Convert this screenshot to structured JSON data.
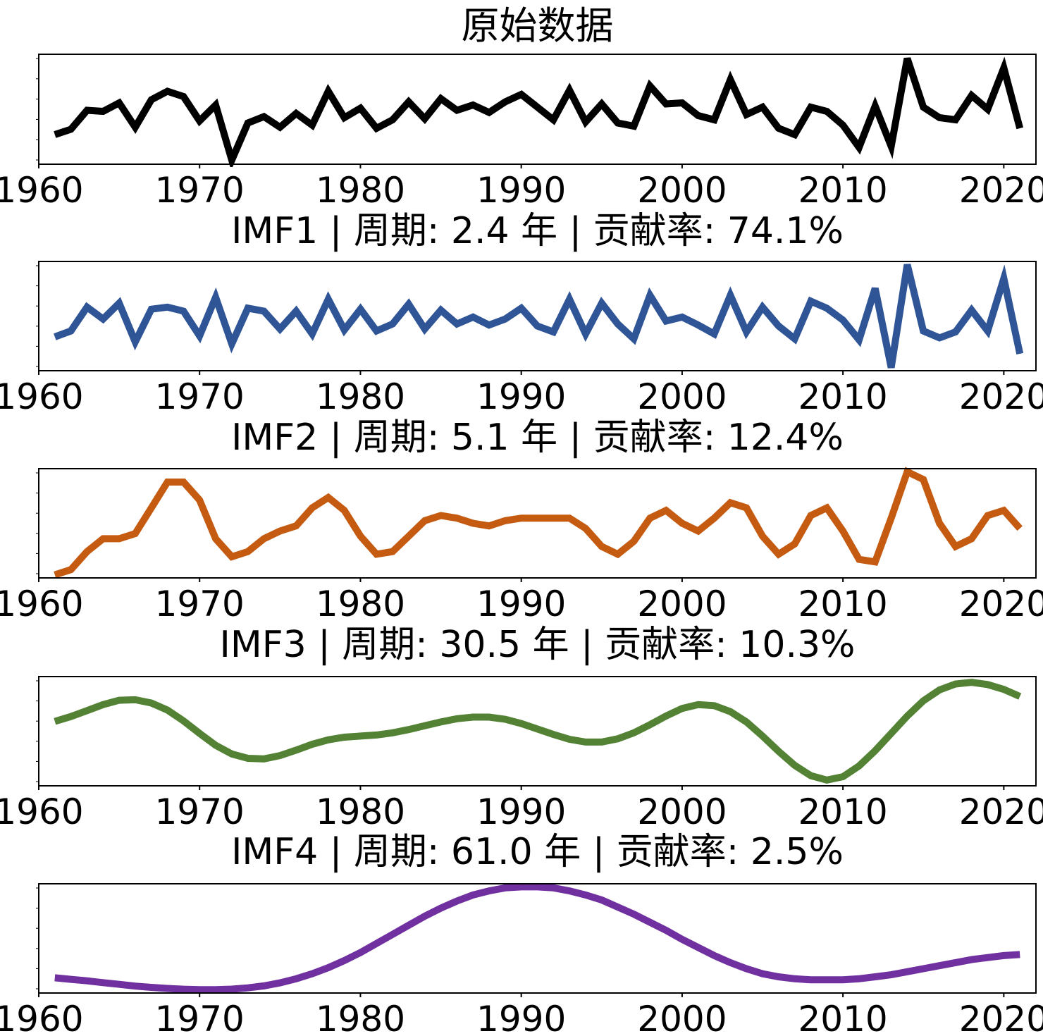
{
  "chart_data": [
    {
      "type": "line",
      "title": "原始数据",
      "color": "#000000",
      "xlim": [
        1960,
        2022
      ],
      "xticks": [
        "1960",
        "1970",
        "1980",
        "1990",
        "2000",
        "2010",
        "2020"
      ],
      "x": [
        1961,
        1962,
        1963,
        1964,
        1965,
        1966,
        1967,
        1968,
        1969,
        1970,
        1971,
        1972,
        1973,
        1974,
        1975,
        1976,
        1977,
        1978,
        1979,
        1980,
        1981,
        1982,
        1983,
        1984,
        1985,
        1986,
        1987,
        1988,
        1989,
        1990,
        1991,
        1992,
        1993,
        1994,
        1995,
        1996,
        1997,
        1998,
        1999,
        2000,
        2001,
        2002,
        2003,
        2004,
        2005,
        2006,
        2007,
        2008,
        2009,
        2010,
        2011,
        2012,
        2013,
        2014,
        2015,
        2016,
        2017,
        2018,
        2019,
        2020,
        2021
      ],
      "values": [
        1.2,
        1.7,
        3.5,
        3.4,
        4.2,
        1.9,
        4.5,
        5.3,
        4.8,
        2.5,
        4.0,
        -1.2,
        2.3,
        2.9,
        1.9,
        3.2,
        2.1,
        5.3,
        2.8,
        3.7,
        1.8,
        2.6,
        4.3,
        2.7,
        4.6,
        3.5,
        4.0,
        3.3,
        4.3,
        5.0,
        3.8,
        2.6,
        5.4,
        2.4,
        4.1,
        2.3,
        2.0,
        5.8,
        4.1,
        4.2,
        3.0,
        2.6,
        6.4,
        3.1,
        3.8,
        1.8,
        1.2,
        3.8,
        3.4,
        2.1,
        0.0,
        3.9,
        0.1,
        8.4,
        3.8,
        2.8,
        2.6,
        4.9,
        3.6,
        7.5,
        1.8
      ],
      "ylim": [
        -1.3,
        8.5
      ]
    },
    {
      "type": "line",
      "title": "IMF1 | 周期: 2.4 年 | 贡献率: 74.1%",
      "color": "#2f5597",
      "xlim": [
        1960,
        2022
      ],
      "xticks": [
        "1960",
        "1970",
        "1980",
        "1990",
        "2000",
        "2010",
        "2020"
      ],
      "x": [
        1961,
        1962,
        1963,
        1964,
        1965,
        1966,
        1967,
        1968,
        1969,
        1970,
        1971,
        1972,
        1973,
        1974,
        1975,
        1976,
        1977,
        1978,
        1979,
        1980,
        1981,
        1982,
        1983,
        1984,
        1985,
        1986,
        1987,
        1988,
        1989,
        1990,
        1991,
        1992,
        1993,
        1994,
        1995,
        1996,
        1997,
        1998,
        1999,
        2000,
        2001,
        2002,
        2003,
        2004,
        2005,
        2006,
        2007,
        2008,
        2009,
        2010,
        2011,
        2012,
        2013,
        2014,
        2015,
        2016,
        2017,
        2018,
        2019,
        2020,
        2021
      ],
      "values": [
        -1.5,
        -0.9,
        1.5,
        0.3,
        1.9,
        -2.0,
        1.3,
        1.5,
        1.1,
        -1.4,
        2.5,
        -2.2,
        1.4,
        1.1,
        -0.7,
        1.1,
        -1.2,
        2.3,
        -0.8,
        1.3,
        -0.9,
        -0.2,
        1.8,
        -0.7,
        1.2,
        -0.2,
        0.5,
        -0.3,
        0.3,
        1.4,
        -0.4,
        -1.0,
        2.3,
        -1.2,
        1.9,
        -0.2,
        -1.7,
        2.7,
        0.1,
        0.5,
        -0.3,
        -1.2,
        2.7,
        -1.0,
        1.5,
        -0.4,
        -1.7,
        2.1,
        1.4,
        0.2,
        -1.8,
        3.4,
        -4.6,
        5.8,
        -0.9,
        -1.6,
        -1.0,
        1.2,
        -0.9,
        4.4,
        -3.2
      ],
      "ylim": [
        -4.6,
        5.8
      ]
    },
    {
      "type": "line",
      "title": "IMF2 | 周期: 5.1 年 | 贡献率: 12.4%",
      "color": "#c55a11",
      "xlim": [
        1960,
        2022
      ],
      "xticks": [
        "1960",
        "1970",
        "1980",
        "1990",
        "2000",
        "2010",
        "2020"
      ],
      "x": [
        1961,
        1962,
        1963,
        1964,
        1965,
        1966,
        1967,
        1968,
        1969,
        1970,
        1971,
        1972,
        1973,
        1974,
        1975,
        1976,
        1977,
        1978,
        1979,
        1980,
        1981,
        1982,
        1983,
        1984,
        1985,
        1986,
        1987,
        1988,
        1989,
        1990,
        1991,
        1992,
        1993,
        1994,
        1995,
        1996,
        1997,
        1998,
        1999,
        2000,
        2001,
        2002,
        2003,
        2004,
        2005,
        2006,
        2007,
        2008,
        2009,
        2010,
        2011,
        2012,
        2013,
        2014,
        2015,
        2016,
        2017,
        2018,
        2019,
        2020,
        2021
      ],
      "values": [
        -2.0,
        -1.8,
        -1.1,
        -0.6,
        -0.6,
        -0.4,
        0.6,
        1.6,
        1.6,
        0.9,
        -0.6,
        -1.3,
        -1.1,
        -0.6,
        -0.3,
        -0.1,
        0.6,
        1.0,
        0.5,
        -0.5,
        -1.2,
        -1.1,
        -0.5,
        0.1,
        0.3,
        0.2,
        0.0,
        -0.1,
        0.1,
        0.2,
        0.2,
        0.2,
        0.2,
        -0.2,
        -0.9,
        -1.2,
        -0.7,
        0.2,
        0.5,
        0.0,
        -0.3,
        0.2,
        0.8,
        0.6,
        -0.5,
        -1.2,
        -0.8,
        0.3,
        0.6,
        -0.3,
        -1.4,
        -1.5,
        0.2,
        2.0,
        1.7,
        0.0,
        -0.9,
        -0.6,
        0.3,
        0.5,
        -0.2
      ],
      "ylim": [
        -2.0,
        2.0
      ]
    },
    {
      "type": "line",
      "title": "IMF3 | 周期: 30.5 年 | 贡献率: 10.3%",
      "color": "#548235",
      "xlim": [
        1960,
        2022
      ],
      "xticks": [
        "1960",
        "1970",
        "1980",
        "1990",
        "2000",
        "2010",
        "2020"
      ],
      "x": [
        1961,
        1962,
        1963,
        1964,
        1965,
        1966,
        1967,
        1968,
        1969,
        1970,
        1971,
        1972,
        1973,
        1974,
        1975,
        1976,
        1977,
        1978,
        1979,
        1980,
        1981,
        1982,
        1983,
        1984,
        1985,
        1986,
        1987,
        1988,
        1989,
        1990,
        1991,
        1992,
        1993,
        1994,
        1995,
        1996,
        1997,
        1998,
        1999,
        2000,
        2001,
        2002,
        2003,
        2004,
        2005,
        2006,
        2007,
        2008,
        2009,
        2010,
        2011,
        2012,
        2013,
        2014,
        2015,
        2016,
        2017,
        2018,
        2019,
        2020,
        2021
      ],
      "values": [
        0.18,
        0.27,
        0.38,
        0.49,
        0.57,
        0.58,
        0.52,
        0.39,
        0.19,
        -0.04,
        -0.26,
        -0.42,
        -0.5,
        -0.51,
        -0.45,
        -0.35,
        -0.24,
        -0.16,
        -0.11,
        -0.09,
        -0.07,
        -0.03,
        0.03,
        0.1,
        0.17,
        0.23,
        0.26,
        0.26,
        0.22,
        0.14,
        0.04,
        -0.06,
        -0.15,
        -0.2,
        -0.2,
        -0.14,
        -0.03,
        0.12,
        0.28,
        0.42,
        0.49,
        0.47,
        0.36,
        0.17,
        -0.09,
        -0.37,
        -0.63,
        -0.82,
        -0.9,
        -0.84,
        -0.64,
        -0.36,
        -0.04,
        0.28,
        0.56,
        0.76,
        0.87,
        0.9,
        0.86,
        0.77,
        0.64
      ],
      "ylim": [
        -0.95,
        0.95
      ]
    },
    {
      "type": "line",
      "title": "IMF4 | 周期: 61.0 年 | 贡献率: 2.5%",
      "color": "#7030a0",
      "xlim": [
        1960,
        2022
      ],
      "xticks": [
        "1960",
        "1970",
        "1980",
        "1990",
        "2000",
        "2010",
        "2020"
      ],
      "x": [
        1961,
        1962,
        1963,
        1964,
        1965,
        1966,
        1967,
        1968,
        1969,
        1970,
        1971,
        1972,
        1973,
        1974,
        1975,
        1976,
        1977,
        1978,
        1979,
        1980,
        1981,
        1982,
        1983,
        1984,
        1985,
        1986,
        1987,
        1988,
        1989,
        1990,
        1991,
        1992,
        1993,
        1994,
        1995,
        1996,
        1997,
        1998,
        1999,
        2000,
        2001,
        2002,
        2003,
        2004,
        2005,
        2006,
        2007,
        2008,
        2009,
        2010,
        2011,
        2012,
        2013,
        2014,
        2015,
        2016,
        2017,
        2018,
        2019,
        2020,
        2021
      ],
      "values": [
        0.1,
        0.085,
        0.07,
        0.052,
        0.035,
        0.018,
        0.005,
        -0.005,
        -0.013,
        -0.018,
        -0.018,
        -0.012,
        0.0,
        0.02,
        0.05,
        0.09,
        0.14,
        0.2,
        0.27,
        0.35,
        0.44,
        0.53,
        0.62,
        0.71,
        0.79,
        0.86,
        0.92,
        0.96,
        0.99,
        1.0,
        1.0,
        0.99,
        0.96,
        0.92,
        0.87,
        0.8,
        0.73,
        0.65,
        0.57,
        0.48,
        0.4,
        0.32,
        0.25,
        0.19,
        0.14,
        0.11,
        0.09,
        0.08,
        0.08,
        0.08,
        0.09,
        0.11,
        0.13,
        0.16,
        0.19,
        0.22,
        0.25,
        0.28,
        0.3,
        0.32,
        0.33
      ],
      "ylim": [
        -0.02,
        1.0
      ]
    }
  ]
}
